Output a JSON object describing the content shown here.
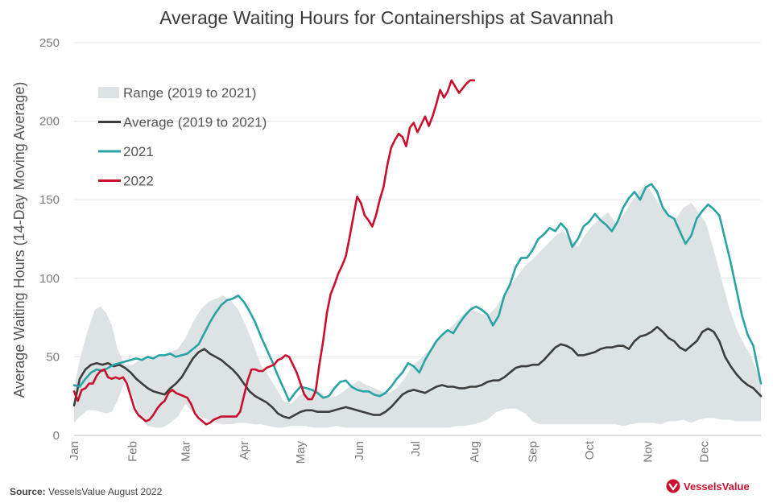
{
  "chart_data": {
    "type": "line",
    "title": "Average Waiting Hours for Containerships at Savannah",
    "ylabel": "Average Waiting Hours (14-Day Moving Average)",
    "xlabel": "",
    "ylim": [
      0,
      250
    ],
    "yticks": [
      0,
      50,
      100,
      150,
      200,
      250
    ],
    "xlim": [
      1,
      365
    ],
    "x_unit": "day of year",
    "months": [
      {
        "label": "Jan",
        "day": 1
      },
      {
        "label": "Feb",
        "day": 32
      },
      {
        "label": "Mar",
        "day": 60
      },
      {
        "label": "Apr",
        "day": 91
      },
      {
        "label": "May",
        "day": 121
      },
      {
        "label": "Jun",
        "day": 152
      },
      {
        "label": "Jul",
        "day": 182
      },
      {
        "label": "Aug",
        "day": 213
      },
      {
        "label": "Sep",
        "day": 244
      },
      {
        "label": "Oct",
        "day": 274
      },
      {
        "label": "Nov",
        "day": 305
      },
      {
        "label": "Dec",
        "day": 335
      }
    ],
    "legend": [
      {
        "key": "range",
        "label": "Range (2019 to 2021)"
      },
      {
        "key": "average",
        "label": "Average (2019 to 2021)"
      },
      {
        "key": "y2021",
        "label": "2021"
      },
      {
        "key": "y2022",
        "label": "2022"
      }
    ],
    "colors": {
      "range": "#dde3e4",
      "average": "#3d3d3d",
      "y2021": "#2aa3a6",
      "y2022": "#c8102e"
    },
    "range": {
      "x": [
        1,
        4,
        8,
        12,
        15,
        18,
        21,
        24,
        28,
        32,
        36,
        40,
        44,
        48,
        52,
        56,
        60,
        64,
        68,
        72,
        76,
        80,
        84,
        88,
        92,
        96,
        100,
        104,
        108,
        112,
        116,
        120,
        124,
        128,
        132,
        136,
        140,
        144,
        148,
        152,
        156,
        160,
        164,
        168,
        172,
        176,
        180,
        184,
        188,
        192,
        196,
        200,
        204,
        208,
        212,
        216,
        220,
        225,
        230,
        235,
        240,
        244,
        248,
        252,
        256,
        260,
        264,
        268,
        272,
        276,
        280,
        284,
        288,
        292,
        296,
        300,
        304,
        308,
        312,
        316,
        320,
        324,
        328,
        332,
        336,
        340,
        344,
        348,
        352,
        356,
        360,
        365
      ],
      "high": [
        30,
        48,
        66,
        80,
        82,
        78,
        70,
        55,
        45,
        45,
        48,
        50,
        50,
        51,
        53,
        55,
        62,
        72,
        80,
        85,
        87,
        89,
        86,
        80,
        70,
        58,
        45,
        38,
        30,
        22,
        20,
        25,
        28,
        30,
        27,
        24,
        25,
        28,
        32,
        35,
        32,
        30,
        28,
        27,
        30,
        36,
        44,
        48,
        53,
        58,
        64,
        68,
        73,
        78,
        80,
        78,
        76,
        82,
        92,
        100,
        108,
        112,
        117,
        122,
        127,
        130,
        126,
        120,
        128,
        134,
        138,
        142,
        135,
        140,
        148,
        155,
        160,
        153,
        145,
        140,
        138,
        145,
        148,
        142,
        135,
        118,
        100,
        82,
        68,
        58,
        50,
        34
      ],
      "low": [
        8,
        12,
        16,
        16,
        15,
        14,
        15,
        22,
        35,
        25,
        12,
        6,
        5,
        5,
        8,
        12,
        20,
        15,
        12,
        10,
        8,
        7,
        7,
        8,
        8,
        7,
        7,
        6,
        5,
        5,
        6,
        6,
        6,
        5,
        5,
        5,
        6,
        5,
        5,
        5,
        5,
        5,
        5,
        5,
        5,
        5,
        5,
        5,
        5,
        5,
        5,
        5,
        6,
        6,
        7,
        8,
        10,
        15,
        17,
        17,
        14,
        9,
        7,
        7,
        7,
        7,
        7,
        7,
        7,
        7,
        7,
        7,
        7,
        6,
        7,
        8,
        8,
        8,
        7,
        9,
        9,
        10,
        8,
        10,
        11,
        11,
        10,
        10,
        9,
        9,
        9,
        9
      ]
    },
    "series": [
      {
        "key": "average",
        "name": "Average (2019 to 2021)",
        "x": [
          1,
          4,
          7,
          10,
          13,
          16,
          19,
          22,
          25,
          28,
          31,
          34,
          37,
          40,
          43,
          46,
          49,
          52,
          55,
          58,
          61,
          64,
          67,
          70,
          73,
          76,
          79,
          82,
          85,
          88,
          91,
          94,
          97,
          100,
          103,
          106,
          109,
          112,
          115,
          118,
          121,
          124,
          127,
          130,
          133,
          136,
          139,
          142,
          145,
          148,
          151,
          154,
          157,
          160,
          163,
          166,
          169,
          172,
          175,
          178,
          181,
          184,
          187,
          190,
          193,
          196,
          199,
          202,
          205,
          208,
          211,
          214,
          217,
          220,
          223,
          226,
          229,
          232,
          235,
          238,
          241,
          244,
          247,
          250,
          253,
          256,
          259,
          262,
          265,
          268,
          271,
          274,
          277,
          280,
          283,
          286,
          289,
          292,
          295,
          298,
          301,
          304,
          307,
          310,
          313,
          316,
          319,
          322,
          325,
          328,
          331,
          334,
          337,
          340,
          343,
          346,
          349,
          352,
          355,
          358,
          361,
          365
        ],
        "values": [
          19,
          36,
          42,
          45,
          46,
          45,
          46,
          44,
          45,
          43,
          40,
          36,
          33,
          30,
          28,
          27,
          26,
          30,
          33,
          37,
          43,
          49,
          53,
          55,
          52,
          50,
          48,
          45,
          42,
          38,
          33,
          28,
          25,
          23,
          21,
          18,
          14,
          12,
          11,
          13,
          15,
          16,
          16,
          15,
          15,
          15,
          16,
          17,
          18,
          17,
          16,
          15,
          14,
          13,
          13,
          15,
          18,
          22,
          26,
          28,
          29,
          28,
          27,
          29,
          31,
          32,
          31,
          31,
          30,
          30,
          31,
          31,
          32,
          34,
          35,
          35,
          37,
          40,
          43,
          44,
          44,
          45,
          45,
          48,
          52,
          56,
          58,
          57,
          55,
          51,
          51,
          52,
          53,
          55,
          56,
          56,
          57,
          57,
          55,
          60,
          63,
          64,
          66,
          69,
          66,
          62,
          60,
          56,
          54,
          57,
          60,
          66,
          68,
          66,
          60,
          50,
          44,
          39,
          35,
          32,
          30,
          25
        ]
      },
      {
        "key": "y2021",
        "name": "2021",
        "x": [
          1,
          4,
          7,
          10,
          13,
          16,
          19,
          22,
          25,
          28,
          31,
          34,
          37,
          40,
          43,
          46,
          49,
          52,
          55,
          58,
          61,
          64,
          67,
          70,
          73,
          76,
          79,
          82,
          85,
          88,
          91,
          94,
          97,
          100,
          103,
          106,
          109,
          112,
          115,
          118,
          121,
          124,
          127,
          130,
          133,
          136,
          139,
          142,
          145,
          148,
          151,
          154,
          157,
          160,
          163,
          166,
          169,
          172,
          175,
          178,
          181,
          184,
          187,
          190,
          193,
          196,
          199,
          202,
          205,
          208,
          211,
          214,
          217,
          220,
          223,
          226,
          229,
          232,
          235,
          238,
          241,
          244,
          247,
          250,
          253,
          256,
          259,
          262,
          265,
          268,
          271,
          274,
          277,
          280,
          283,
          286,
          289,
          292,
          295,
          298,
          301,
          304,
          307,
          310,
          313,
          316,
          319,
          322,
          325,
          328,
          331,
          334,
          337,
          340,
          343,
          346,
          349,
          352,
          355,
          358,
          361,
          365
        ],
        "values": [
          32,
          31,
          36,
          40,
          42,
          41,
          43,
          45,
          46,
          47,
          48,
          49,
          48,
          50,
          49,
          51,
          51,
          52,
          50,
          51,
          52,
          55,
          58,
          65,
          72,
          78,
          83,
          86,
          87,
          89,
          85,
          79,
          72,
          63,
          55,
          47,
          38,
          30,
          22,
          27,
          31,
          30,
          29,
          27,
          24,
          25,
          30,
          34,
          35,
          31,
          29,
          28,
          28,
          26,
          25,
          27,
          31,
          36,
          40,
          46,
          44,
          40,
          48,
          54,
          60,
          64,
          67,
          65,
          71,
          76,
          80,
          82,
          80,
          77,
          70,
          76,
          89,
          96,
          107,
          113,
          113,
          118,
          125,
          128,
          132,
          130,
          135,
          131,
          120,
          125,
          133,
          136,
          141,
          137,
          134,
          130,
          136,
          145,
          151,
          155,
          150,
          158,
          160,
          155,
          145,
          140,
          138,
          130,
          122,
          127,
          138,
          143,
          147,
          144,
          140,
          125,
          110,
          93,
          76,
          64,
          57,
          33
        ]
      },
      {
        "key": "y2022",
        "name": "2022",
        "x": [
          1,
          3,
          5,
          7,
          9,
          11,
          13,
          15,
          17,
          19,
          21,
          23,
          25,
          27,
          29,
          31,
          33,
          35,
          37,
          39,
          41,
          43,
          45,
          47,
          49,
          51,
          53,
          55,
          57,
          59,
          61,
          63,
          65,
          67,
          69,
          71,
          73,
          75,
          77,
          79,
          81,
          83,
          85,
          87,
          89,
          91,
          93,
          95,
          97,
          99,
          101,
          103,
          105,
          107,
          109,
          111,
          113,
          115,
          117,
          119,
          121,
          123,
          125,
          127,
          129,
          131,
          133,
          135,
          137,
          139,
          141,
          143,
          145,
          147,
          149,
          151,
          153,
          155,
          157,
          159,
          161,
          163,
          165,
          167,
          169,
          171,
          173,
          175,
          177,
          179,
          181,
          183,
          185,
          187,
          189,
          191,
          193,
          195,
          197,
          199,
          201,
          203,
          205,
          207,
          209,
          211,
          213
        ],
        "values": [
          28,
          22,
          29,
          30,
          33,
          33,
          38,
          41,
          42,
          37,
          36,
          37,
          36,
          37,
          33,
          25,
          17,
          13,
          11,
          9,
          10,
          13,
          17,
          20,
          22,
          27,
          29,
          27,
          26,
          25,
          24,
          20,
          14,
          11,
          9,
          7,
          8,
          10,
          11,
          12,
          12,
          12,
          12,
          12,
          15,
          25,
          35,
          42,
          42,
          41,
          41,
          43,
          44,
          45,
          48,
          49,
          51,
          50,
          45,
          40,
          33,
          26,
          23,
          23,
          28,
          45,
          60,
          78,
          90,
          96,
          103,
          108,
          114,
          126,
          139,
          152,
          148,
          140,
          137,
          133,
          140,
          150,
          158,
          172,
          183,
          188,
          192,
          190,
          184,
          196,
          199,
          193,
          198,
          203,
          197,
          203,
          211,
          220,
          215,
          219,
          226,
          222,
          218,
          221,
          224,
          226,
          226
        ]
      }
    ]
  },
  "footer": {
    "source_label": "Source:",
    "source_text": "VesselsValue August 2022",
    "logo_text": "VesselsValue"
  }
}
